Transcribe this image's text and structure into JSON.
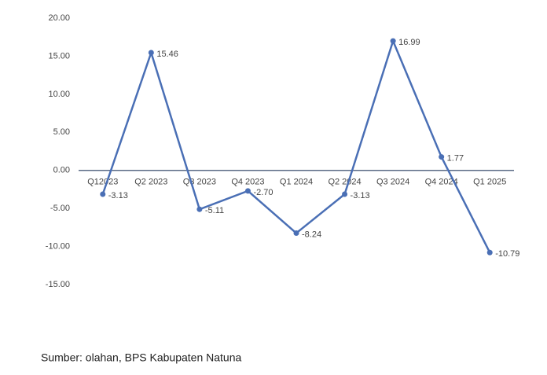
{
  "chart_data": {
    "type": "line",
    "categories": [
      "Q12023",
      "Q2 2023",
      "Q3 2023",
      "Q4 2023",
      "Q1 2024",
      "Q2 2024",
      "Q3 2024",
      "Q4 2024",
      "Q1 2025"
    ],
    "values": [
      -3.13,
      15.46,
      -5.11,
      -2.7,
      -8.24,
      -3.13,
      16.99,
      1.77,
      -10.79
    ],
    "value_labels": [
      "-3.13",
      "15.46",
      "-5.11",
      "-2.70",
      "-8.24",
      "-3.13",
      "16.99",
      "1.77",
      "-10.79"
    ],
    "color": "#4a6fb5",
    "ylim": [
      -15,
      20
    ],
    "yticks": [
      {
        "value": 20,
        "label": "20.00"
      },
      {
        "value": 15,
        "label": "15.00"
      },
      {
        "value": 10,
        "label": "10.00"
      },
      {
        "value": 5,
        "label": "5.00"
      },
      {
        "value": 0,
        "label": "0.00"
      },
      {
        "value": -5,
        "label": "-5.00"
      },
      {
        "value": -10,
        "label": "-10.00"
      },
      {
        "value": -15,
        "label": "-15.00"
      }
    ],
    "source": "Sumber: olahan, BPS Kabupaten Natuna"
  }
}
